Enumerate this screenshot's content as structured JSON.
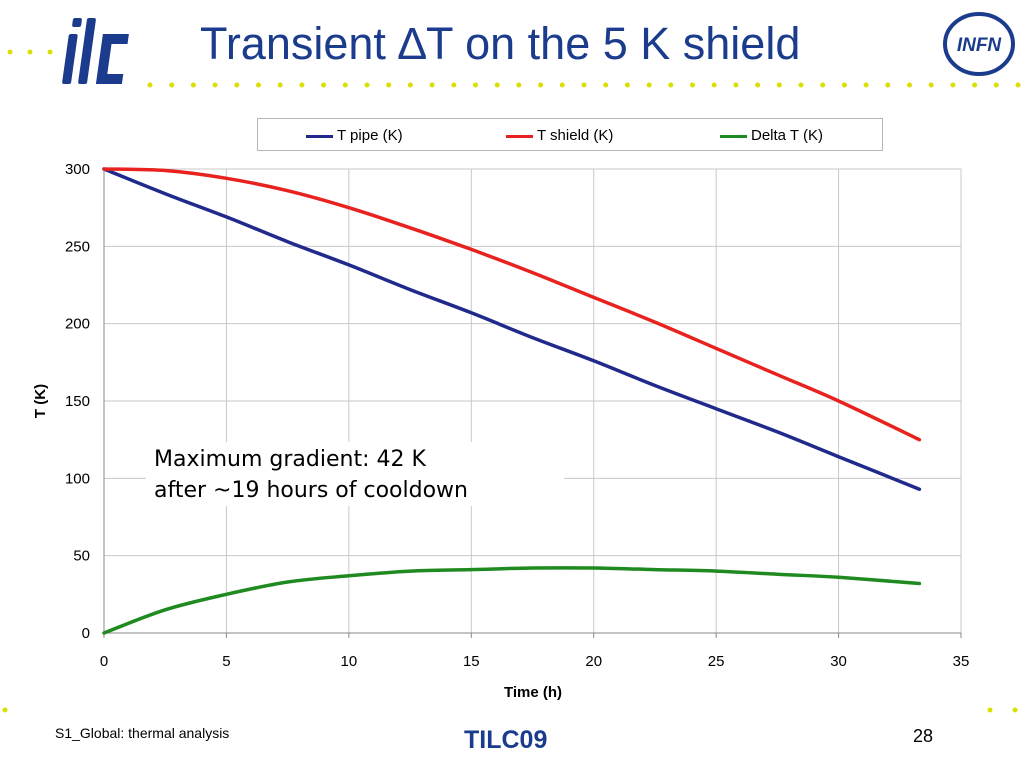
{
  "slide": {
    "title": "Transient ∆T on the 5 K shield",
    "footer_left": "S1_Global: thermal analysis",
    "footer_center": "TILC09",
    "page_number": "28",
    "logo_left_text": "ilc",
    "logo_right_text": "INFN"
  },
  "annotation": {
    "line1": "Maximum gradient: 42 K",
    "line2": "after ~19 hours of cooldown"
  },
  "colors": {
    "title": "#1b3b8c",
    "t_pipe": "#1f2a8c",
    "t_shield": "#e8231f",
    "delta_t": "#1f8a1f",
    "dots": "#d8e000"
  },
  "chart_data": {
    "type": "line",
    "xlabel": "Time (h)",
    "ylabel": "T (K)",
    "xlim": [
      0,
      35
    ],
    "ylim": [
      0,
      300
    ],
    "xticks": [
      0,
      5,
      10,
      15,
      20,
      25,
      30,
      35
    ],
    "yticks": [
      0,
      50,
      100,
      150,
      200,
      250,
      300
    ],
    "grid": true,
    "legend_position": "top",
    "x": [
      0,
      2.5,
      5,
      7.5,
      10,
      12.5,
      15,
      17.5,
      20,
      22.5,
      25,
      27.5,
      30,
      33.3
    ],
    "series": [
      {
        "name": "T pipe (K)",
        "color_key": "t_pipe",
        "values": [
          300,
          284,
          269,
          253,
          238,
          222,
          207,
          191,
          176,
          160,
          145,
          130,
          114,
          93
        ]
      },
      {
        "name": "T shield (K)",
        "color_key": "t_shield",
        "values": [
          300,
          299,
          294,
          286,
          275,
          262,
          248,
          233,
          217,
          201,
          184,
          167,
          150,
          125
        ]
      },
      {
        "name": "Delta T (K)",
        "color_key": "delta_t",
        "values": [
          0,
          15,
          25,
          33,
          37,
          40,
          41,
          42,
          42,
          41,
          40,
          38,
          36,
          32
        ]
      }
    ]
  }
}
